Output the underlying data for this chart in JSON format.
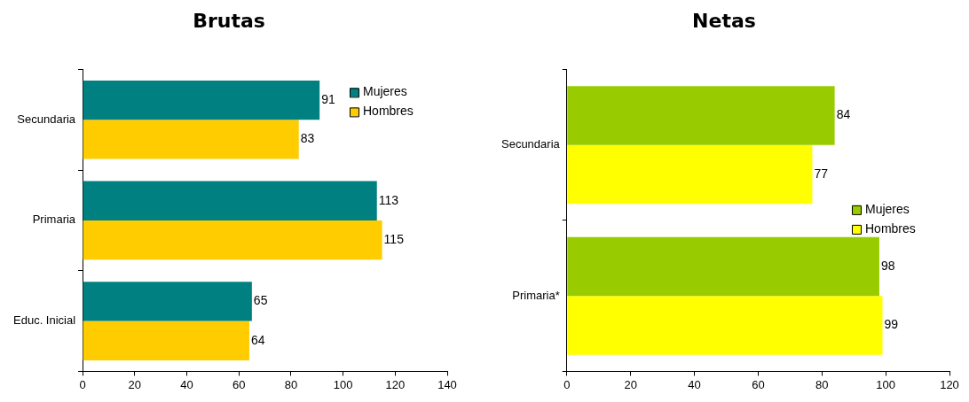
{
  "chart_data": [
    {
      "type": "bar",
      "title": "Brutas",
      "orientation": "horizontal",
      "categories": [
        "Secundaria",
        "Primaria",
        "Educ. Inicial"
      ],
      "series": [
        {
          "name": "Mujeres",
          "color": "#008080",
          "values": [
            91,
            113,
            65
          ]
        },
        {
          "name": "Hombres",
          "color": "#ffcc00",
          "values": [
            83,
            115,
            64
          ]
        }
      ],
      "xlim": [
        0,
        140
      ],
      "xticks": [
        0,
        20,
        40,
        60,
        80,
        100,
        120,
        140
      ],
      "grid": false,
      "legend": "top right",
      "data_labels": true
    },
    {
      "type": "bar",
      "title": "Netas",
      "orientation": "horizontal",
      "categories": [
        "Secundaria",
        "Primaria*"
      ],
      "series": [
        {
          "name": "Mujeres",
          "color": "#99cc00",
          "values": [
            84,
            98
          ]
        },
        {
          "name": "Hombres",
          "color": "#ffff00",
          "values": [
            77,
            99
          ]
        }
      ],
      "xlim": [
        0,
        120
      ],
      "xticks": [
        0,
        20,
        40,
        60,
        80,
        100,
        120
      ],
      "grid": false,
      "legend": "right",
      "data_labels": true
    }
  ]
}
